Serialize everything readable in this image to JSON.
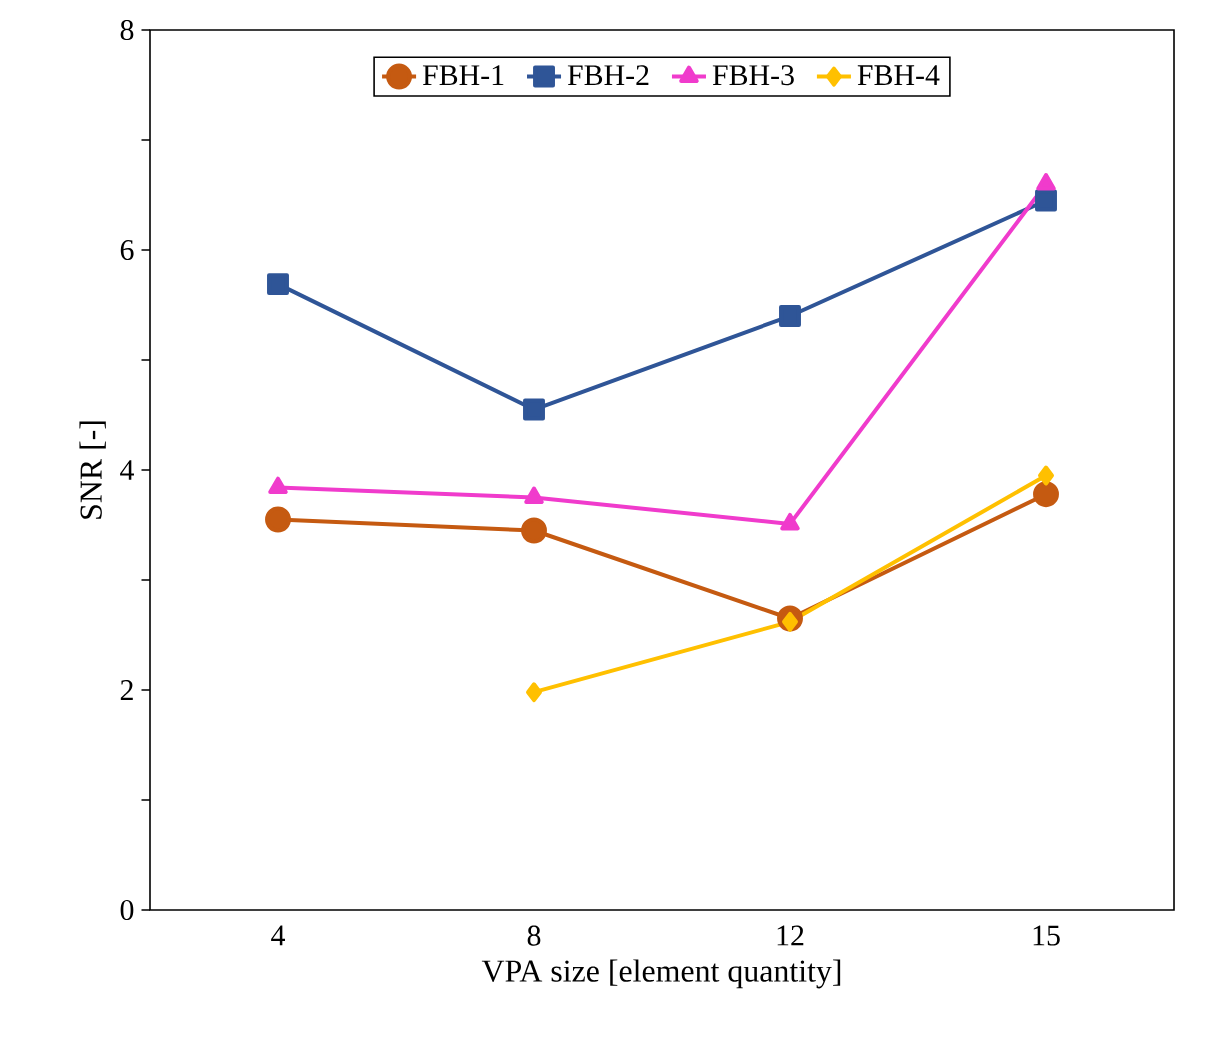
{
  "chart_data": {
    "type": "line",
    "xlabel": "VPA size [element quantity]",
    "ylabel": "SNR [-]",
    "categories": [
      "4",
      "8",
      "12",
      "15"
    ],
    "ylim": [
      0,
      8
    ],
    "yticks": [
      0,
      {
        "value": 1,
        "label": null
      },
      2,
      {
        "value": 3,
        "label": null
      },
      4,
      {
        "value": 5,
        "label": null
      },
      6,
      {
        "value": 7,
        "label": null
      },
      8
    ],
    "legend": "top",
    "grid": false,
    "series": [
      {
        "name": "FBH-1",
        "color": "#c55a11",
        "marker": "circle",
        "values": [
          3.55,
          3.45,
          2.65,
          3.78
        ]
      },
      {
        "name": "FBH-2",
        "color": "#2f5597",
        "marker": "square",
        "values": [
          5.69,
          4.55,
          5.4,
          6.45
        ]
      },
      {
        "name": "FBH-3",
        "color": "#f03bcc",
        "marker": "triangle",
        "values": [
          3.84,
          3.75,
          3.51,
          6.6
        ]
      },
      {
        "name": "FBH-4",
        "color": "#ffc000",
        "marker": "diamond",
        "values": [
          null,
          1.98,
          2.62,
          3.95
        ]
      }
    ]
  }
}
